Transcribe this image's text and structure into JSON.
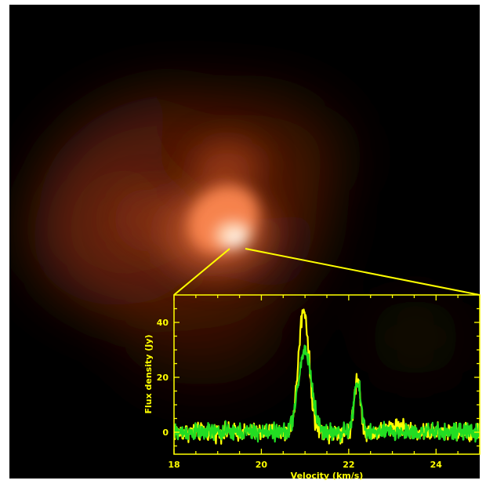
{
  "image": {
    "description_colors": {
      "background": "#000000",
      "glow_core": "#fffbe8",
      "glow_mid": "#ff9a5a",
      "glow_outer": "#8a2e10"
    }
  },
  "chart_data": {
    "type": "line",
    "title": "",
    "xlabel": "Velocity (km/s)",
    "ylabel": "Flux density (Jy)",
    "xlim": [
      18,
      25
    ],
    "ylim": [
      -8,
      50
    ],
    "xticks": [
      18,
      20,
      22,
      24
    ],
    "yticks": [
      0,
      20,
      40
    ],
    "grid": false,
    "frame_color": "#ffff00",
    "series": [
      {
        "color": "#ffff00",
        "noise": 2.6,
        "peaks": [
          {
            "center": 20.97,
            "amplitude": 45,
            "sigma": 0.12
          },
          {
            "center": 22.2,
            "amplitude": 20,
            "sigma": 0.07
          },
          {
            "center": 23.1,
            "amplitude": 2.5,
            "sigma": 0.2
          }
        ]
      },
      {
        "color": "#22dd22",
        "noise": 2.6,
        "peaks": [
          {
            "center": 21.0,
            "amplitude": 30,
            "sigma": 0.15
          },
          {
            "center": 22.2,
            "amplitude": 18,
            "sigma": 0.08
          }
        ]
      }
    ]
  }
}
